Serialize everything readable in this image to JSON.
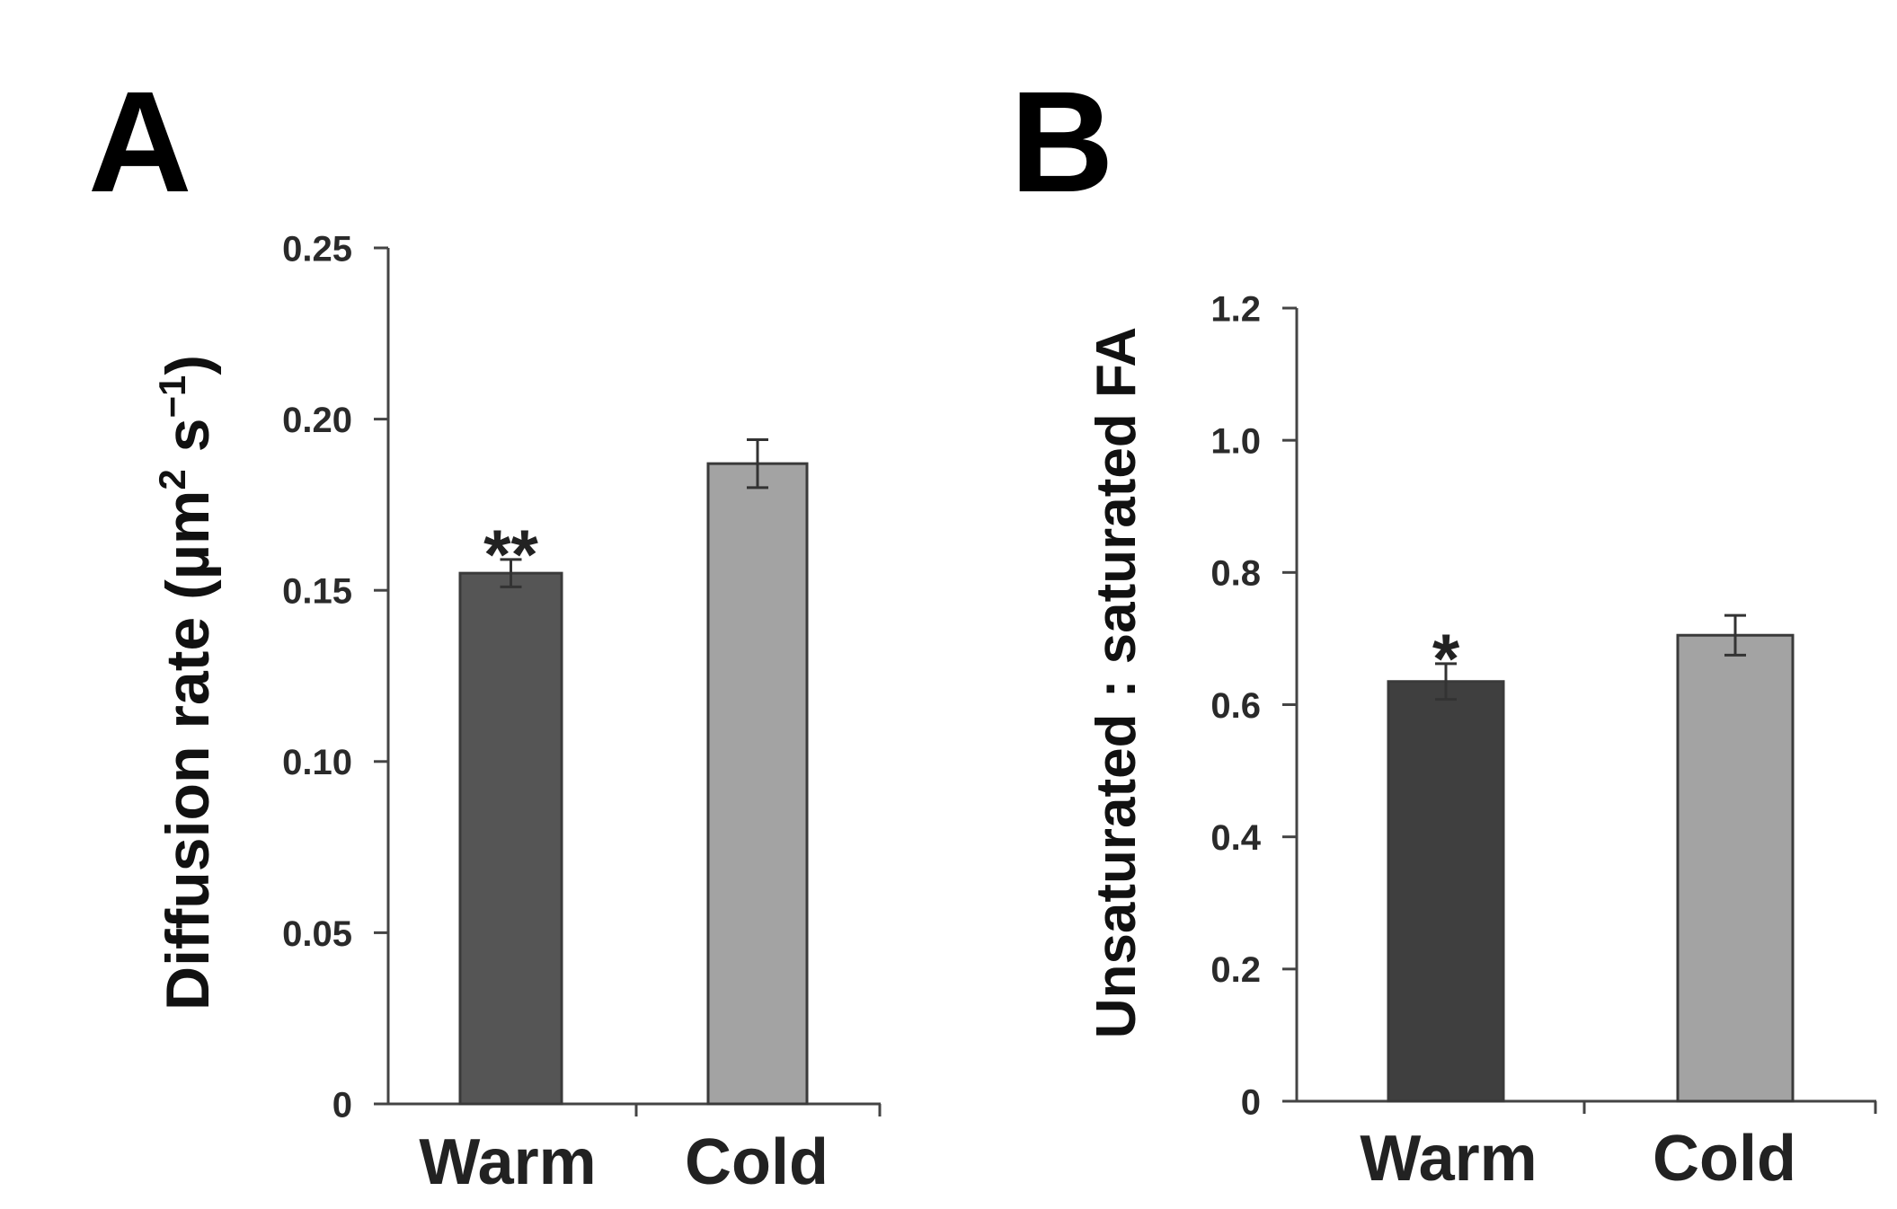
{
  "chart_data": [
    {
      "panel": "A",
      "type": "bar",
      "categories": [
        "Warm",
        "Cold"
      ],
      "values": [
        0.155,
        0.187
      ],
      "errors": [
        0.004,
        0.007
      ],
      "colors": [
        "#555555",
        "#a3a3a3"
      ],
      "significance": [
        "**",
        ""
      ],
      "ylabel_parts": {
        "main": "Diffusion rate (µm",
        "sup1": "2",
        "mid": " s",
        "sup2": "−1",
        "end": ")"
      },
      "ylim": [
        0,
        0.25
      ],
      "yticks": [
        0,
        0.05,
        0.1,
        0.15,
        0.2,
        0.25
      ],
      "ytick_labels": [
        "0",
        "0.05",
        "0.10",
        "0.15",
        "0.20",
        "0.25"
      ]
    },
    {
      "panel": "B",
      "type": "bar",
      "categories": [
        "Warm",
        "Cold"
      ],
      "values": [
        0.635,
        0.705
      ],
      "errors": [
        0.027,
        0.03
      ],
      "colors": [
        "#3f3f3f",
        "#a3a3a3"
      ],
      "significance": [
        "*",
        ""
      ],
      "ylabel": "Unsaturated : saturated FA",
      "ylim": [
        0,
        1.2
      ],
      "yticks": [
        0,
        0.2,
        0.4,
        0.6,
        0.8,
        1.0,
        1.2
      ],
      "ytick_labels": [
        "0",
        "0.2",
        "0.4",
        "0.6",
        "0.8",
        "1.0",
        "1.2"
      ]
    }
  ]
}
